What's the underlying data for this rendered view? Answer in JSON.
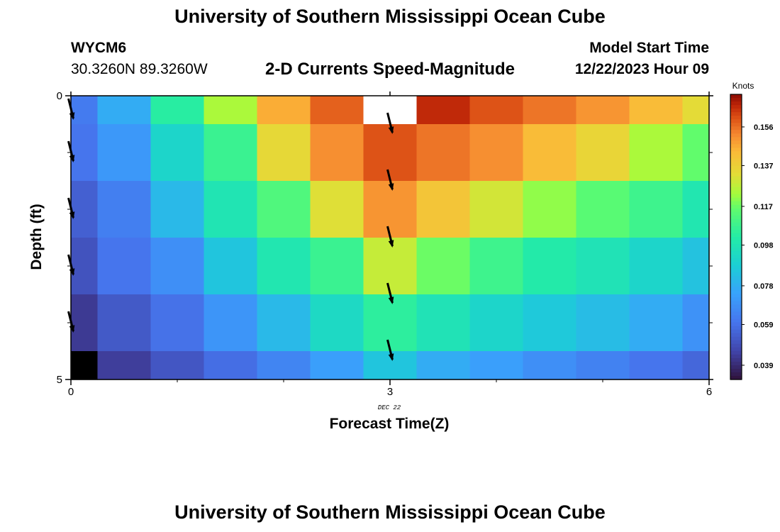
{
  "page": {
    "title": "University of Southern Mississippi Ocean Cube",
    "station_id": "WYCM6",
    "station_coords": "30.3260N  89.3260W",
    "subtitle": "2-D Currents Speed-Magnitude",
    "model_label": "Model Start Time",
    "model_time": "12/22/2023 Hour 09",
    "footer_title": "University of Southern Mississippi Ocean Cube"
  },
  "chart_data": {
    "type": "heatmap",
    "title": "2-D Currents Speed-Magnitude",
    "xlabel": "Forecast Time(Z)",
    "ylabel": "Depth (ft)",
    "x_ticks": [
      "0",
      "3",
      "6"
    ],
    "x_sublabel": "DEC 22",
    "y_ticks": [
      "0",
      "5"
    ],
    "xlim": [
      0,
      6
    ],
    "ylim": [
      0,
      5
    ],
    "y_inverted": true,
    "colorbar": {
      "label": "Knots",
      "ticks": [
        0.039,
        0.059,
        0.078,
        0.098,
        0.117,
        0.137,
        0.156
      ],
      "range": [
        0.032,
        0.172
      ]
    },
    "time_edges": [
      0,
      0.25,
      0.75,
      1.25,
      1.75,
      2.25,
      2.75,
      3.25,
      3.75,
      4.25,
      4.75,
      5.25,
      5.75,
      6
    ],
    "depth_edges": [
      0,
      0.5,
      1.5,
      2.5,
      3.5,
      4.5,
      5
    ],
    "values": [
      [
        0.062,
        0.077,
        0.103,
        0.124,
        0.146,
        0.158,
        null,
        0.166,
        0.16,
        0.155,
        0.15,
        0.143,
        0.133
      ],
      [
        0.06,
        0.071,
        0.091,
        0.107,
        0.134,
        0.151,
        0.16,
        0.155,
        0.151,
        0.143,
        0.135,
        0.124,
        0.116
      ],
      [
        0.054,
        0.063,
        0.081,
        0.098,
        0.112,
        0.132,
        0.15,
        0.14,
        0.13,
        0.121,
        0.114,
        0.108,
        0.099
      ],
      [
        0.05,
        0.06,
        0.068,
        0.085,
        0.099,
        0.107,
        0.128,
        0.117,
        0.108,
        0.101,
        0.097,
        0.091,
        0.084
      ],
      [
        0.043,
        0.052,
        0.059,
        0.07,
        0.081,
        0.093,
        0.104,
        0.097,
        0.091,
        0.086,
        0.082,
        0.077,
        0.069
      ],
      [
        null,
        0.044,
        0.051,
        0.058,
        0.065,
        0.073,
        0.085,
        0.077,
        0.073,
        0.068,
        0.064,
        0.06,
        0.056
      ]
    ],
    "vectors": [
      {
        "t": 3,
        "depth": 0.5
      },
      {
        "t": 3,
        "depth": 1.5
      },
      {
        "t": 3,
        "depth": 2.5
      },
      {
        "t": 3,
        "depth": 3.5
      },
      {
        "t": 3,
        "depth": 4.5
      },
      {
        "t": 0,
        "depth": 0.25
      },
      {
        "t": 0,
        "depth": 1
      },
      {
        "t": 0,
        "depth": 2
      },
      {
        "t": 0,
        "depth": 3
      },
      {
        "t": 0,
        "depth": 4
      }
    ],
    "missing_color_top": "#ffffff",
    "missing_color_bottom": "#000000"
  }
}
